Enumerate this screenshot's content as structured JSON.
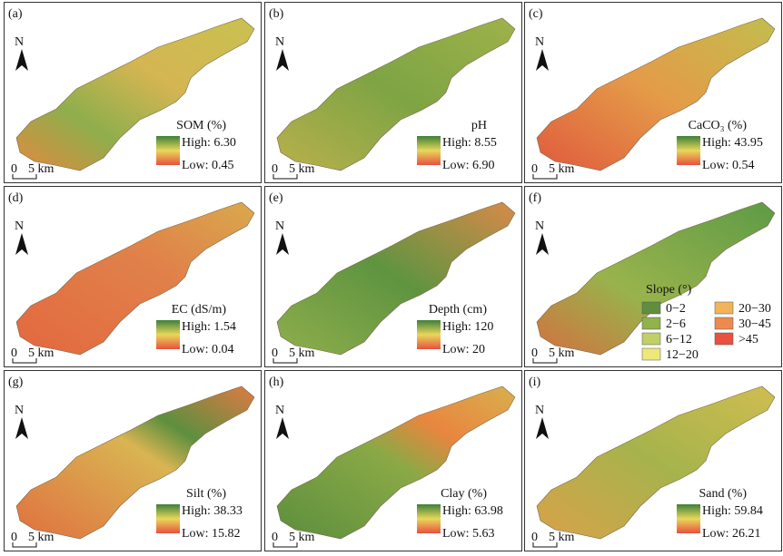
{
  "panels": [
    {
      "label": "(a)",
      "north": "N",
      "scale_zero": "0",
      "scale_km": "5 km",
      "legend_title": "SOM (%)",
      "high": "High: 6.30",
      "low": "Low: 0.45"
    },
    {
      "label": "(b)",
      "north": "N",
      "scale_zero": "0",
      "scale_km": "5 km",
      "legend_title": "pH",
      "high": "High: 8.55",
      "low": "Low: 6.90"
    },
    {
      "label": "(c)",
      "north": "N",
      "scale_zero": "0",
      "scale_km": "5 km",
      "legend_title": "CaCO₃ (%)",
      "high": "High: 43.95",
      "low": "Low: 0.54"
    },
    {
      "label": "(d)",
      "north": "N",
      "scale_zero": "0",
      "scale_km": "5 km",
      "legend_title": "EC (dS/m)",
      "high": "High: 1.54",
      "low": "Low: 0.04"
    },
    {
      "label": "(e)",
      "north": "N",
      "scale_zero": "0",
      "scale_km": "5 km",
      "legend_title": "Depth (cm)",
      "high": "High: 120",
      "low": "Low:  20"
    },
    {
      "label": "(f)",
      "north": "N",
      "scale_zero": "0",
      "scale_km": "5 km",
      "legend_title": "Slope (°)",
      "classes": [
        "0−2",
        "2−6",
        "6−12",
        "12−20",
        "20−30",
        "30−45",
        ">45"
      ]
    },
    {
      "label": "(g)",
      "north": "N",
      "scale_zero": "0",
      "scale_km": "5 km",
      "legend_title": "Silt (%)",
      "high": "High: 38.33",
      "low": "Low: 15.82"
    },
    {
      "label": "(h)",
      "north": "N",
      "scale_zero": "0",
      "scale_km": "5 km",
      "legend_title": "Clay (%)",
      "high": "High: 63.98",
      "low": "Low: 5.63"
    },
    {
      "label": "(i)",
      "north": "N",
      "scale_zero": "0",
      "scale_km": "5 km",
      "legend_title": "Sand (%)",
      "high": "High: 59.84",
      "low": "Low: 26.21"
    }
  ]
}
